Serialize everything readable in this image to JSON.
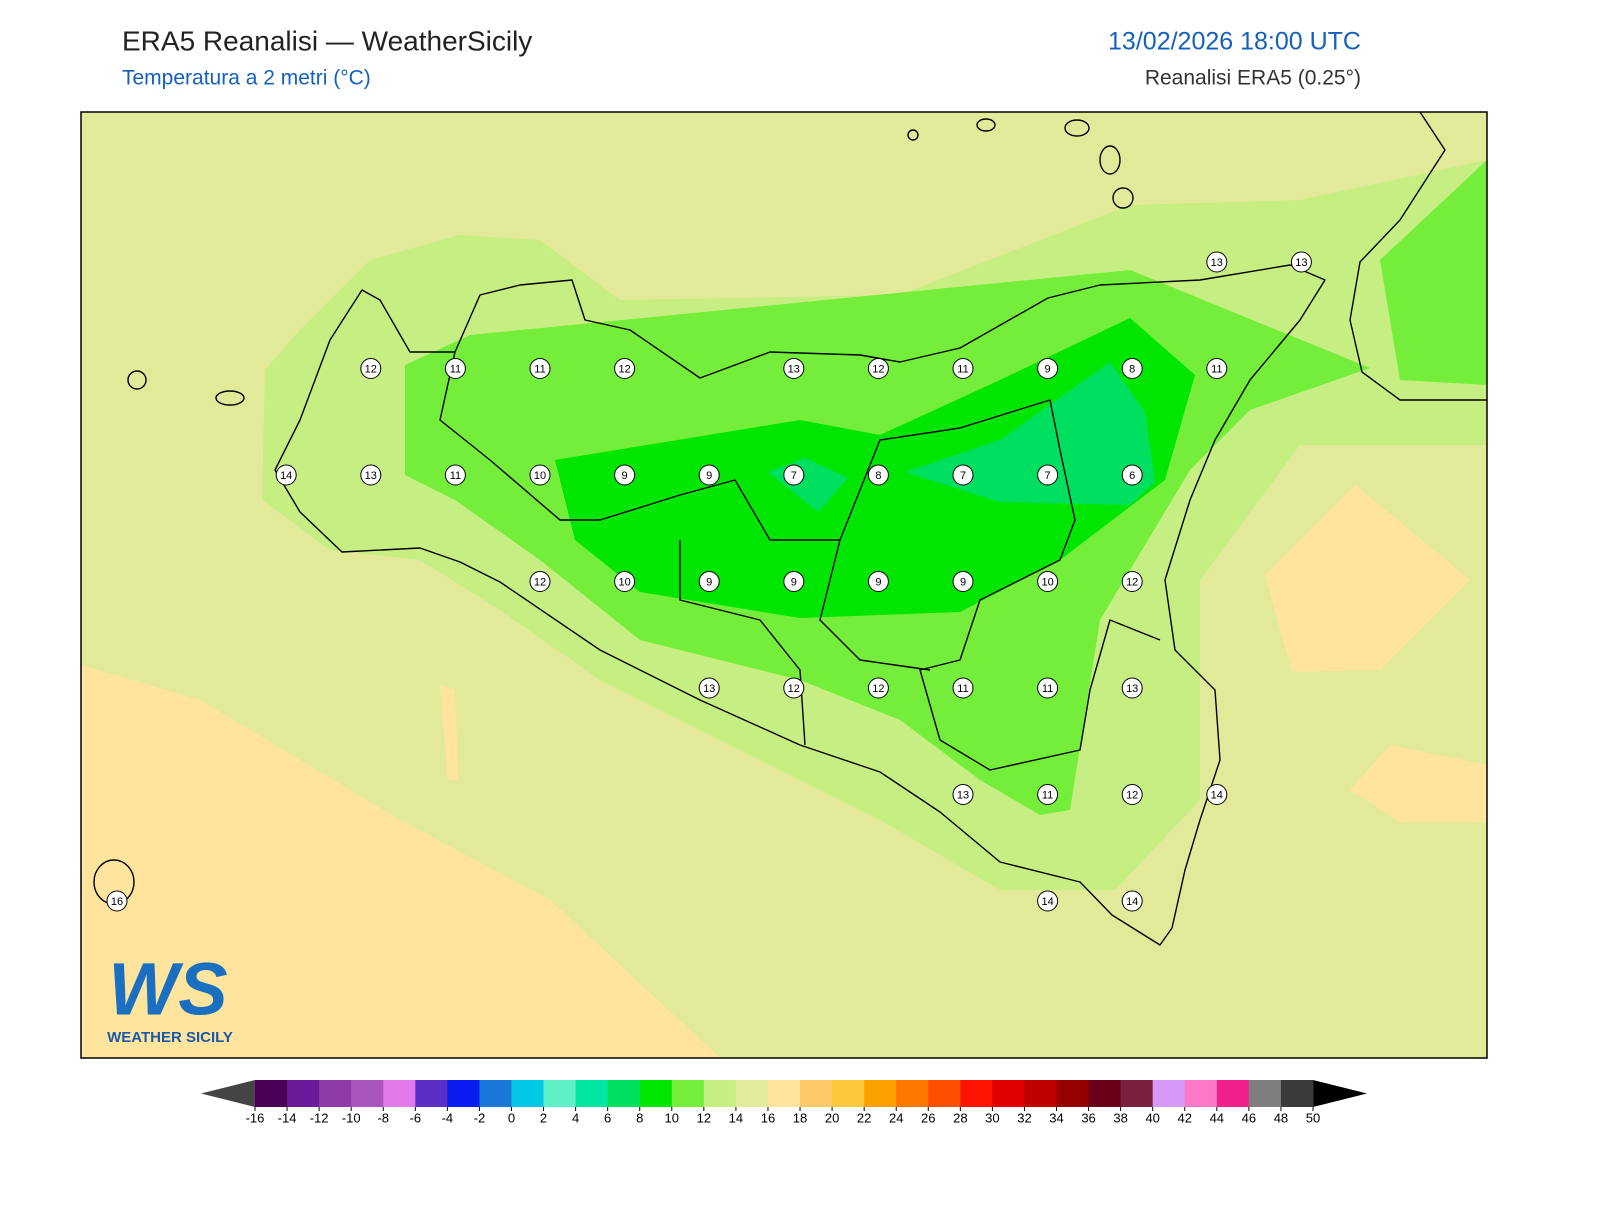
{
  "header": {
    "title": "ERA5 Reanalisi — WeatherSicily",
    "subtitle": "Temperatura a 2 metri (°C)",
    "timestamp": "13/02/2026 18:00 UTC",
    "source": "Reanalisi ERA5 (0.25°)"
  },
  "stations": [
    [
      null,
      null,
      null,
      null,
      null,
      null,
      null,
      null,
      null,
      null,
      null,
      null,
      null,
      13,
      13
    ],
    [
      null,
      null,
      null,
      12,
      11,
      11,
      12,
      null,
      13,
      12,
      11,
      9,
      8,
      11,
      null
    ],
    [
      null,
      null,
      14,
      13,
      11,
      10,
      9,
      9,
      7,
      8,
      7,
      7,
      6,
      null,
      null
    ],
    [
      null,
      null,
      null,
      null,
      null,
      12,
      10,
      9,
      9,
      9,
      9,
      10,
      12,
      null,
      null
    ],
    [
      null,
      null,
      null,
      null,
      null,
      null,
      null,
      13,
      12,
      12,
      11,
      11,
      13,
      null,
      null
    ],
    [
      null,
      null,
      null,
      null,
      null,
      null,
      null,
      null,
      null,
      null,
      13,
      11,
      12,
      14,
      null
    ],
    [
      16,
      null,
      null,
      null,
      null,
      null,
      null,
      null,
      null,
      null,
      null,
      14,
      14,
      null,
      null
    ]
  ],
  "colorbar": {
    "ticks": [
      -16,
      -14,
      -12,
      -10,
      -8,
      -6,
      -4,
      -2,
      0,
      2,
      4,
      6,
      8,
      10,
      12,
      14,
      16,
      18,
      20,
      22,
      24,
      26,
      28,
      30,
      32,
      34,
      36,
      38,
      40,
      42,
      44,
      46,
      48,
      50
    ],
    "colors": [
      "#4b0055",
      "#6a1b9a",
      "#8e3aa8",
      "#a855c0",
      "#e07ae8",
      "#5a2fc8",
      "#0a1cf0",
      "#1a78d8",
      "#00c8e6",
      "#5ff0c8",
      "#00e6a0",
      "#00e060",
      "#00e600",
      "#74ee3a",
      "#c6ee82",
      "#e2ea9a",
      "#fee49c",
      "#fcc868",
      "#fcc83c",
      "#fca000",
      "#fc7800",
      "#fc5000",
      "#fc1400",
      "#e00000",
      "#be0000",
      "#960000",
      "#6a0018",
      "#7a2040",
      "#d898f8",
      "#fc78c8",
      "#f0208c",
      "#7f7f7f",
      "#3a3a3a"
    ],
    "under_color": "#444444",
    "over_color": "#000000"
  },
  "logo": {
    "mark": "WS",
    "text": "WEATHER SICILY"
  }
}
